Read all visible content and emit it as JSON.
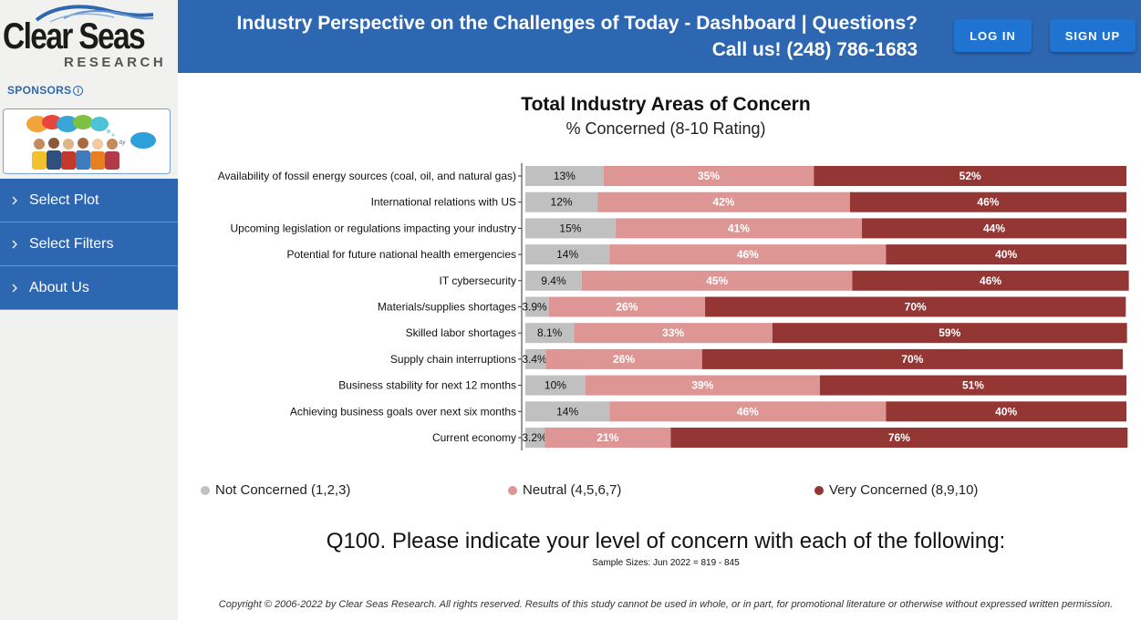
{
  "brand": {
    "logo_main": "Clear Seas",
    "logo_sub": "RESEARCH"
  },
  "sidebar": {
    "sponsors_label": "SPONSORS",
    "nav": [
      {
        "label": "Select Plot"
      },
      {
        "label": "Select Filters"
      },
      {
        "label": "About Us"
      }
    ]
  },
  "header": {
    "title_line1": "Industry Perspective on the Challenges of Today - Dashboard | Questions?",
    "title_line2": "Call us! (248) 786-1683",
    "login_label": "LOG IN",
    "signup_label": "SIGN UP"
  },
  "colors": {
    "header_blue": "#2e67b1",
    "not_concerned": "#c0c0c0",
    "neutral": "#de9694",
    "very_concerned": "#943634"
  },
  "chart_data": {
    "type": "bar",
    "orientation": "horizontal",
    "stacked": true,
    "title": "Total Industry Areas of Concern",
    "subtitle": "% Concerned (8-10 Rating)",
    "categories": [
      "Availability of fossil energy sources (coal, oil, and natural gas)",
      "International relations with US",
      "Upcoming legislation or regulations impacting your industry",
      "Potential for future national health emergencies",
      "IT cybersecurity",
      "Materials/supplies shortages",
      "Skilled labor shortages",
      "Supply chain interruptions",
      "Business stability for next 12 months",
      "Achieving business goals over next six months",
      "Current economy"
    ],
    "series": [
      {
        "name": "Not Concerned (1,2,3)",
        "color": "#c0c0c0",
        "values": [
          13,
          12,
          15,
          14,
          9.4,
          3.9,
          8.1,
          3.4,
          10,
          14,
          3.2
        ],
        "labels": [
          "13%",
          "12%",
          "15%",
          "14%",
          "9.4%",
          "3.9%",
          "8.1%",
          "3.4%",
          "10%",
          "14%",
          "3.2%"
        ]
      },
      {
        "name": "Neutral (4,5,6,7)",
        "color": "#de9694",
        "values": [
          35,
          42,
          41,
          46,
          45,
          26,
          33,
          26,
          39,
          46,
          21
        ],
        "labels": [
          "35%",
          "42%",
          "41%",
          "46%",
          "45%",
          "26%",
          "33%",
          "26%",
          "39%",
          "46%",
          "21%"
        ]
      },
      {
        "name": "Very Concerned (8,9,10)",
        "color": "#943634",
        "values": [
          52,
          46,
          44,
          40,
          46,
          70,
          59,
          70,
          51,
          40,
          76
        ],
        "labels": [
          "52%",
          "46%",
          "44%",
          "40%",
          "46%",
          "70%",
          "59%",
          "70%",
          "51%",
          "40%",
          "76%"
        ]
      }
    ],
    "xlim": [
      0,
      100
    ],
    "grid": false,
    "legend_position": "bottom"
  },
  "question": "Q100. Please indicate your level of concern with each of the following:",
  "sample_sizes": "Sample Sizes: Jun 2022 = 819 - 845",
  "copyright": "Copyright © 2006-2022 by Clear Seas Research. All rights reserved. Results of this study cannot be used in whole, or in part, for promotional literature or otherwise without expressed written permission."
}
